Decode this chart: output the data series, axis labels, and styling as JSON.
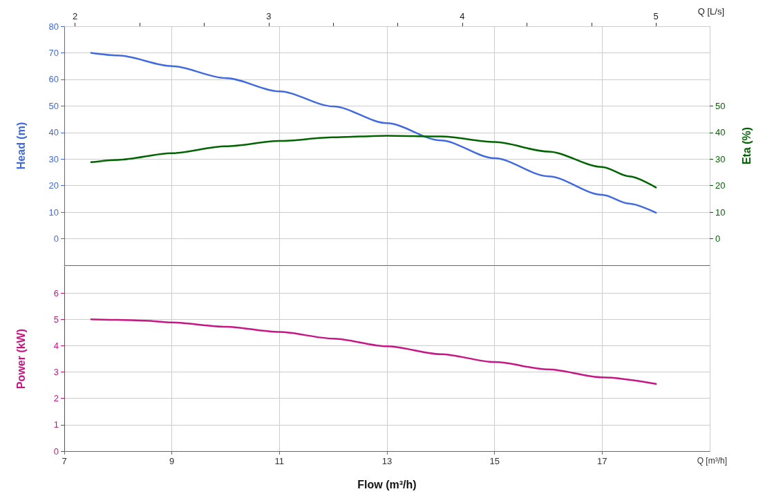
{
  "chart_data": [
    {
      "type": "line",
      "ylabel": "Head (m)",
      "y2label": "Eta (%)",
      "x2label": "Q [L/s]",
      "x": [
        7.5,
        8,
        9,
        10,
        11,
        12,
        13,
        14,
        15,
        16,
        17,
        17.5,
        18
      ],
      "series": [
        {
          "color": "#4169e1",
          "values": [
            70,
            69,
            65,
            60.5,
            55.5,
            49.8,
            43.5,
            37,
            30.3,
            23.5,
            16.5,
            13.2,
            9.8
          ]
        },
        {
          "color": "#006400",
          "axis": "y2",
          "values": [
            28.8,
            29.7,
            32.2,
            34.8,
            36.8,
            38.2,
            38.8,
            38.5,
            36.4,
            32.8,
            27,
            23.5,
            19.3
          ]
        }
      ],
      "xlim": [
        7,
        19
      ],
      "xticks": [
        7,
        9,
        11,
        13,
        15,
        17
      ],
      "x2lim": [
        1.944,
        5.278
      ],
      "x2ticks": [
        2,
        {
          "value": 2.333,
          "label": null
        },
        {
          "value": 2.667,
          "label": null
        },
        3,
        {
          "value": 3.333,
          "label": null
        },
        {
          "value": 3.667,
          "label": null
        },
        4,
        {
          "value": 4.333,
          "label": null
        },
        {
          "value": 4.667,
          "label": null
        },
        5
      ],
      "ylim": [
        -10,
        80
      ],
      "yticks": [
        0,
        10,
        20,
        30,
        40,
        50,
        60,
        70,
        80
      ],
      "y2lim": [
        -10,
        80
      ],
      "y2ticks": [
        0,
        10,
        20,
        30,
        40,
        50
      ],
      "grid": true,
      "tick_labels": "y"
    },
    {
      "type": "line",
      "ylabel": "Power (kW)",
      "xlabel": "Flow (m³/h)",
      "annotations": [
        "Q [m³/h]"
      ],
      "x": [
        7.5,
        8,
        8.5,
        9,
        10,
        11,
        12,
        13,
        14,
        15,
        16,
        17,
        18
      ],
      "series": [
        {
          "color": "#c71585",
          "values": [
            5.0,
            4.98,
            4.95,
            4.88,
            4.72,
            4.52,
            4.27,
            3.98,
            3.68,
            3.38,
            3.1,
            2.8,
            2.55
          ]
        }
      ],
      "xlim": [
        7,
        19
      ],
      "xticks": [
        7,
        9,
        11,
        13,
        15,
        17
      ],
      "ylim": [
        0,
        7
      ],
      "yticks": [
        0,
        1,
        2,
        3,
        4,
        5,
        6
      ],
      "grid": true
    }
  ]
}
